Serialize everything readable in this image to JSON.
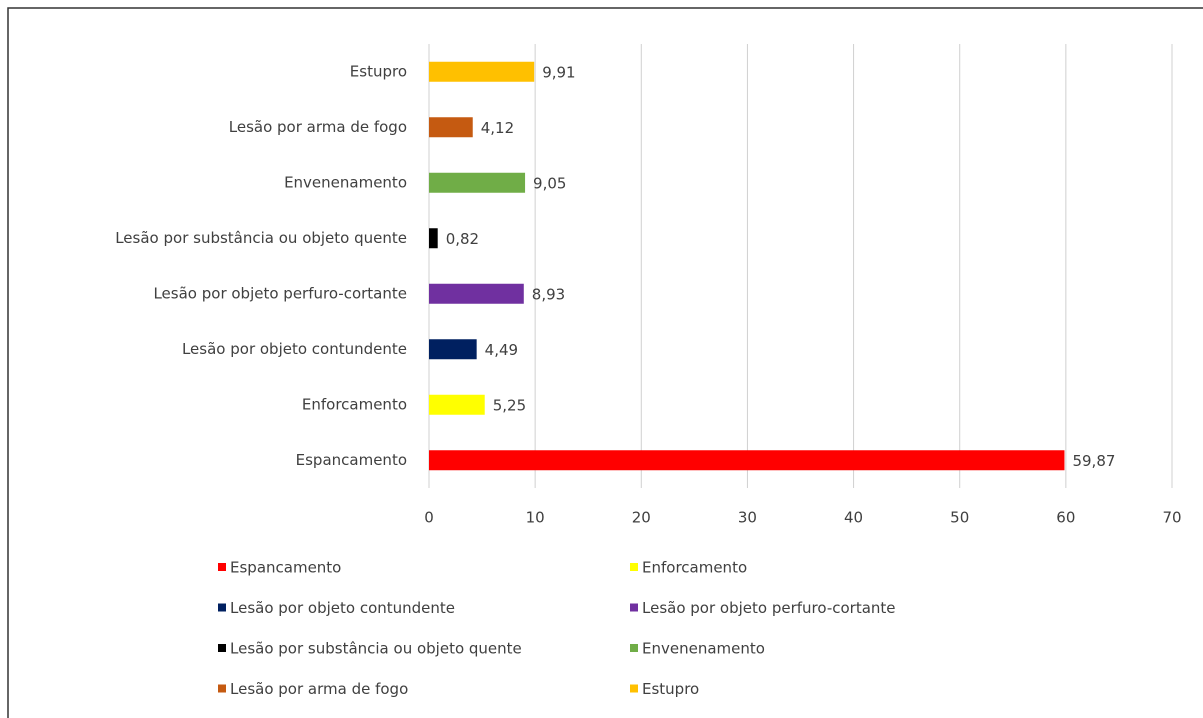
{
  "chart_data": {
    "type": "barh",
    "categories": [
      "Espancamento",
      "Enforcamento",
      "Lesão por objeto contundente",
      "Lesão por objeto perfuro-cortante",
      "Lesão por substância ou objeto quente",
      "Envenenamento",
      "Lesão por arma de fogo",
      "Estupro"
    ],
    "values": [
      59.87,
      5.25,
      4.49,
      8.93,
      0.82,
      9.05,
      4.12,
      9.91
    ],
    "value_labels": [
      "59,87",
      "5,25",
      "4,49",
      "8,93",
      "0,82",
      "9,05",
      "4,12",
      "9,91"
    ],
    "colors": [
      "#ff0000",
      "#ffff00",
      "#002060",
      "#7030a0",
      "#000000",
      "#70ad47",
      "#c55a11",
      "#ffc000"
    ],
    "xlim": [
      0,
      70
    ],
    "xticks": [
      0,
      10,
      20,
      30,
      40,
      50,
      60,
      70
    ],
    "grid": true,
    "legend": "bottom"
  }
}
